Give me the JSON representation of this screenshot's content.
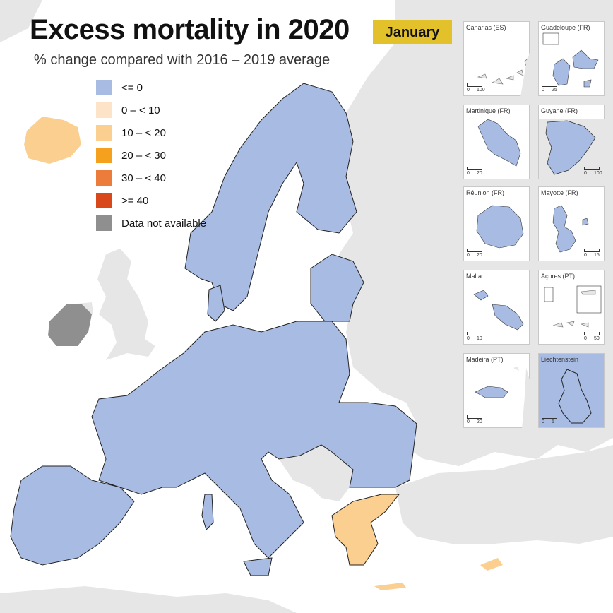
{
  "title": "Excess mortality in 2020",
  "month": "January",
  "subtitle": "% change compared with 2016 – 2019 average",
  "colors": {
    "sea": "#ffffff",
    "non_eu": "#e6e6e6",
    "le0": "#a8bbe3",
    "c0_10": "#fde4c8",
    "c10_20": "#fbcf8f",
    "c20_30": "#f6a11d",
    "c30_40": "#ec7c3c",
    "c40": "#d9481b",
    "na": "#8f8f8f",
    "month_bg": "#e3c12b"
  },
  "legend": [
    {
      "label": "<= 0",
      "color": "#a8bbe3"
    },
    {
      "label": "0 – < 10",
      "color": "#fde4c8"
    },
    {
      "label": "10 – < 20",
      "color": "#fbcf8f"
    },
    {
      "label": "20 – < 30",
      "color": "#f6a11d"
    },
    {
      "label": "30 – < 40",
      "color": "#ec7c3c"
    },
    {
      "label": ">= 40",
      "color": "#d9481b"
    },
    {
      "label": "Data not available",
      "color": "#8f8f8f"
    }
  ],
  "regions": [
    {
      "name": "Iceland",
      "category": "10 – < 20"
    },
    {
      "name": "Ireland",
      "category": "Data not available"
    },
    {
      "name": "Greece",
      "category": "10 – < 20"
    },
    {
      "name": "Cyprus",
      "category": "10 – < 20"
    },
    {
      "name": "Norway, Sweden, Finland, Baltic states, Denmark, Germany, Poland, Czechia, Slovakia, Austria, Hungary, Slovenia, Croatia, Romania, Bulgaria, France, Spain, Portugal, Italy, Switzerland, Belgium, Netherlands, Luxembourg, Liechtenstein",
      "category": "<= 0"
    }
  ],
  "insets": [
    {
      "label": "Canarias (ES)",
      "scale": [
        "0",
        "100"
      ]
    },
    {
      "label": "Guadeloupe (FR)",
      "scale": [
        "0",
        "25"
      ]
    },
    {
      "label": "Martinique (FR)",
      "scale": [
        "0",
        "20"
      ]
    },
    {
      "label": "Guyane (FR)",
      "scale": [
        "0",
        "100"
      ]
    },
    {
      "label": "Réunion (FR)",
      "scale": [
        "0",
        "20"
      ]
    },
    {
      "label": "Mayotte (FR)",
      "scale": [
        "0",
        "15"
      ]
    },
    {
      "label": "Malta",
      "scale": [
        "0",
        "10"
      ]
    },
    {
      "label": "Açores (PT)",
      "scale": [
        "0",
        "50"
      ]
    },
    {
      "label": "Madeira (PT)",
      "scale": [
        "0",
        "20"
      ]
    },
    {
      "label": "Liechtenstein",
      "scale": [
        "0",
        "5"
      ]
    }
  ]
}
